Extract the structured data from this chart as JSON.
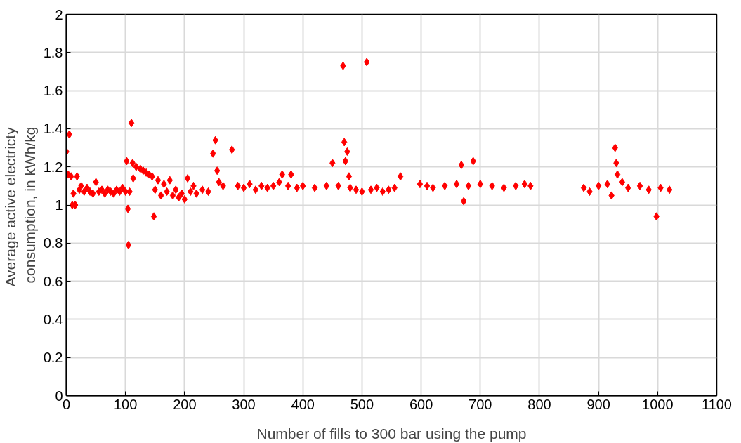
{
  "chart_data": {
    "type": "scatter",
    "xlabel": "Number of fills to 300 bar using the pump",
    "ylabel": "Average active  electricty consumption, in kWh/kg",
    "xlim": [
      0,
      1100
    ],
    "xticks": [
      0,
      100,
      200,
      300,
      400,
      500,
      600,
      700,
      800,
      900,
      1000,
      1100
    ],
    "ylim": [
      0,
      2
    ],
    "yticks": [
      0,
      0.2,
      0.4,
      0.6,
      0.8,
      1,
      1.2,
      1.4,
      1.6,
      1.8,
      2
    ],
    "grid": true,
    "marker": "diamond",
    "series": [
      {
        "color": "#ff0000",
        "x": [
          0,
          3,
          5,
          8,
          10,
          12,
          15,
          18,
          22,
          25,
          30,
          35,
          40,
          45,
          50,
          55,
          60,
          65,
          70,
          75,
          80,
          85,
          90,
          95,
          100,
          102,
          104,
          105,
          107,
          110,
          112,
          113,
          118,
          125,
          130,
          135,
          140,
          145,
          148,
          150,
          155,
          160,
          165,
          170,
          175,
          180,
          185,
          190,
          195,
          200,
          205,
          210,
          215,
          220,
          230,
          240,
          248,
          252,
          255,
          258,
          265,
          280,
          290,
          300,
          310,
          320,
          330,
          340,
          350,
          360,
          365,
          375,
          380,
          390,
          400,
          420,
          440,
          450,
          460,
          468,
          470,
          472,
          475,
          478,
          480,
          490,
          500,
          508,
          515,
          525,
          535,
          545,
          555,
          565,
          598,
          610,
          620,
          640,
          660,
          668,
          672,
          680,
          688,
          700,
          720,
          740,
          760,
          775,
          785,
          875,
          885,
          900,
          915,
          922,
          928,
          930,
          932,
          940,
          950,
          970,
          985,
          998,
          1005,
          1020
        ],
        "values": [
          1.28,
          1.16,
          1.37,
          1.15,
          1.0,
          1.06,
          1.0,
          1.15,
          1.08,
          1.1,
          1.07,
          1.09,
          1.07,
          1.06,
          1.12,
          1.07,
          1.08,
          1.06,
          1.08,
          1.07,
          1.06,
          1.08,
          1.07,
          1.09,
          1.07,
          1.23,
          0.98,
          0.79,
          1.07,
          1.43,
          1.22,
          1.14,
          1.2,
          1.19,
          1.18,
          1.17,
          1.16,
          1.15,
          0.94,
          1.08,
          1.13,
          1.05,
          1.11,
          1.07,
          1.13,
          1.05,
          1.08,
          1.04,
          1.06,
          1.03,
          1.14,
          1.07,
          1.1,
          1.06,
          1.08,
          1.07,
          1.27,
          1.34,
          1.18,
          1.12,
          1.1,
          1.29,
          1.1,
          1.09,
          1.11,
          1.08,
          1.1,
          1.09,
          1.1,
          1.12,
          1.16,
          1.1,
          1.16,
          1.09,
          1.1,
          1.09,
          1.1,
          1.22,
          1.1,
          1.73,
          1.33,
          1.23,
          1.28,
          1.15,
          1.09,
          1.08,
          1.07,
          1.75,
          1.08,
          1.09,
          1.07,
          1.08,
          1.09,
          1.15,
          1.11,
          1.1,
          1.09,
          1.1,
          1.11,
          1.21,
          1.02,
          1.1,
          1.23,
          1.11,
          1.1,
          1.09,
          1.1,
          1.11,
          1.1,
          1.09,
          1.07,
          1.1,
          1.11,
          1.05,
          1.3,
          1.22,
          1.16,
          1.12,
          1.09,
          1.1,
          1.08,
          0.94,
          1.09,
          1.08
        ]
      }
    ]
  }
}
